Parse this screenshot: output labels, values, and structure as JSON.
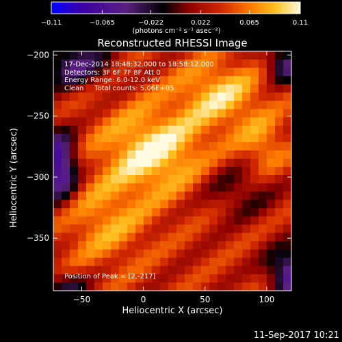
{
  "chart_data": {
    "type": "heatmap",
    "title": "Reconstructed RHESSI Image",
    "xlabel": "Heliocentric X (arcsec)",
    "ylabel": "Heliocentric Y (arcsec)",
    "xlim": [
      -73,
      120
    ],
    "ylim": [
      -393,
      -197
    ],
    "x_ticks": [
      "−50",
      "0",
      "50",
      "100"
    ],
    "x_tick_values": [
      -50,
      0,
      50,
      100
    ],
    "y_ticks": [
      "−200",
      "−250",
      "−300",
      "−350"
    ],
    "y_tick_values": [
      -200,
      -250,
      -300,
      -350
    ],
    "colorbar": {
      "ticks": [
        "−0.11",
        "−0.065",
        "−0.022",
        "0.022",
        "0.065",
        "0.11"
      ],
      "tick_values": [
        -0.11,
        -0.065,
        -0.022,
        0.022,
        0.065,
        0.11
      ],
      "range": [
        -0.11,
        0.11
      ],
      "units": "(photons cm⁻² s⁻¹ asec⁻²)"
    },
    "peak": [
      2,
      -217
    ],
    "annotations": [
      "17-Dec-2014 18:48:32.000 to 18:58:12.000",
      "Detectors: 3F 6F 7F 8F  Att 0",
      "Energy Range: 6.0-12.0 keV",
      "Clean     Total counts: 5.06E+05",
      "Position of Peak = [2,-217]"
    ]
  },
  "footer": {
    "timestamp": "11-Sep-2017 10:21"
  },
  "colors": {
    "background": "#000000",
    "colormap": [
      "#0000ff",
      "#3a00a8",
      "#4b1e7e",
      "#000000",
      "#8b0000",
      "#cc2200",
      "#ff6a00",
      "#ffb000",
      "#ffe84a",
      "#fffadc"
    ]
  }
}
